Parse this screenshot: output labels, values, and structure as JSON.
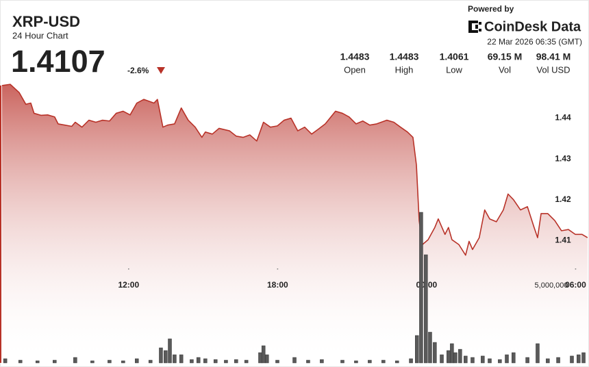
{
  "header": {
    "price": "1.4107",
    "change": "-2.6%",
    "powered_by": "Powered by",
    "brand": "CoinDesk Data",
    "timestamp": "22 Mar 2026 06:35 (GMT)",
    "stats": [
      {
        "value": "1.4483",
        "label": "Open"
      },
      {
        "value": "1.4483",
        "label": "High"
      },
      {
        "value": "1.4061",
        "label": "Low"
      },
      {
        "value": "69.15 M",
        "label": "Vol"
      },
      {
        "value": "98.41 M",
        "label": "Vol USD"
      }
    ]
  },
  "chart_data": [
    {
      "type": "area",
      "title": "XRP-USD",
      "subtitle": "24 Hour Chart",
      "color": "#b83228",
      "fill_color": "#c0463f",
      "grid": false,
      "x": [
        6.9,
        7.23,
        7.59,
        7.86,
        8.06,
        8.19,
        8.47,
        8.74,
        9.02,
        9.16,
        9.43,
        9.71,
        9.85,
        10.12,
        10.4,
        10.68,
        10.95,
        11.23,
        11.5,
        11.78,
        12.06,
        12.33,
        12.61,
        13.02,
        13.16,
        13.38,
        13.57,
        13.85,
        14.12,
        14.4,
        14.68,
        14.95,
        15.09,
        15.37,
        15.64,
        16.06,
        16.33,
        16.61,
        16.88,
        17.16,
        17.43,
        17.71,
        17.99,
        18.26,
        18.54,
        18.81,
        19.09,
        19.37,
        19.64,
        19.92,
        20.33,
        20.61,
        20.88,
        21.16,
        21.43,
        21.71,
        21.99,
        22.4,
        22.68,
        22.95,
        23.23,
        23.45,
        23.59,
        23.7,
        23.83,
        24.06,
        24.33,
        24.47,
        24.74,
        24.88,
        25.02,
        25.3,
        25.57,
        25.71,
        25.85,
        26.12,
        26.34,
        26.54,
        26.81,
        27.09,
        27.28,
        27.5,
        27.78,
        28.06,
        28.33,
        28.47,
        28.61,
        28.88,
        29.16,
        29.43,
        29.71,
        29.99,
        30.26,
        30.48
      ],
      "values": [
        1.448,
        1.4483,
        1.4463,
        1.4434,
        1.4437,
        1.4412,
        1.4407,
        1.4408,
        1.4403,
        1.4386,
        1.4383,
        1.438,
        1.439,
        1.4378,
        1.4395,
        1.439,
        1.4395,
        1.4393,
        1.4412,
        1.4417,
        1.4408,
        1.4437,
        1.4446,
        1.4437,
        1.4446,
        1.4378,
        1.4383,
        1.4386,
        1.4425,
        1.4395,
        1.4378,
        1.4353,
        1.4366,
        1.4361,
        1.4375,
        1.4369,
        1.4356,
        1.4353,
        1.4359,
        1.4344,
        1.439,
        1.4378,
        1.4381,
        1.4395,
        1.44,
        1.4369,
        1.4378,
        1.4361,
        1.4373,
        1.4386,
        1.4417,
        1.4412,
        1.4403,
        1.4386,
        1.4393,
        1.4383,
        1.4386,
        1.4395,
        1.439,
        1.4378,
        1.4366,
        1.4353,
        1.4285,
        1.4149,
        1.409,
        1.4102,
        1.4132,
        1.4153,
        1.4115,
        1.4132,
        1.4102,
        1.409,
        1.4064,
        1.4098,
        1.4078,
        1.4107,
        1.4175,
        1.4153,
        1.4146,
        1.4175,
        1.4214,
        1.42,
        1.4175,
        1.4183,
        1.4132,
        1.4107,
        1.4166,
        1.4166,
        1.4149,
        1.4124,
        1.4127,
        1.4115,
        1.4115,
        1.4107
      ],
      "xlim": [
        6.82,
        30.54
      ],
      "xticks": [
        {
          "value": 12,
          "label": "12:00"
        },
        {
          "value": 18,
          "label": "18:00"
        },
        {
          "value": 24,
          "label": "00:00"
        },
        {
          "value": 30,
          "label": "06:00"
        }
      ],
      "ylim": [
        1.38,
        1.45
      ],
      "yticks": [
        1.41,
        1.42,
        1.43,
        1.44
      ]
    },
    {
      "type": "bar",
      "color": "#5a5a5a",
      "x": [
        7.03,
        7.64,
        8.33,
        9.02,
        9.85,
        10.54,
        11.23,
        11.78,
        12.33,
        12.88,
        13.3,
        13.49,
        13.66,
        13.85,
        14.12,
        14.54,
        14.81,
        15.09,
        15.5,
        15.92,
        16.33,
        16.74,
        17.3,
        17.43,
        17.57,
        17.99,
        18.68,
        19.23,
        19.78,
        20.61,
        21.16,
        21.71,
        22.26,
        22.81,
        23.37,
        23.61,
        23.78,
        23.97,
        24.14,
        24.33,
        24.61,
        24.88,
        25.02,
        25.16,
        25.35,
        25.57,
        25.85,
        26.26,
        26.54,
        26.95,
        27.23,
        27.5,
        28.06,
        28.47,
        28.88,
        29.3,
        29.85,
        30.12,
        30.32
      ],
      "values": [
        260000,
        170000,
        130000,
        170000,
        340000,
        130000,
        170000,
        130000,
        260000,
        170000,
        940000,
        770000,
        1500000,
        510000,
        510000,
        210000,
        340000,
        260000,
        210000,
        170000,
        210000,
        170000,
        640000,
        1070000,
        510000,
        170000,
        340000,
        170000,
        210000,
        170000,
        130000,
        170000,
        170000,
        130000,
        260000,
        1710000,
        9400000,
        6750000,
        1920000,
        1280000,
        510000,
        770000,
        1200000,
        640000,
        850000,
        430000,
        340000,
        430000,
        260000,
        210000,
        510000,
        640000,
        340000,
        1200000,
        260000,
        340000,
        430000,
        510000,
        640000
      ],
      "xlim": [
        6.82,
        30.54
      ],
      "ylim": [
        0,
        17820000
      ],
      "yticks": [
        {
          "value": 5000000,
          "label": "5,000,000"
        }
      ]
    }
  ]
}
